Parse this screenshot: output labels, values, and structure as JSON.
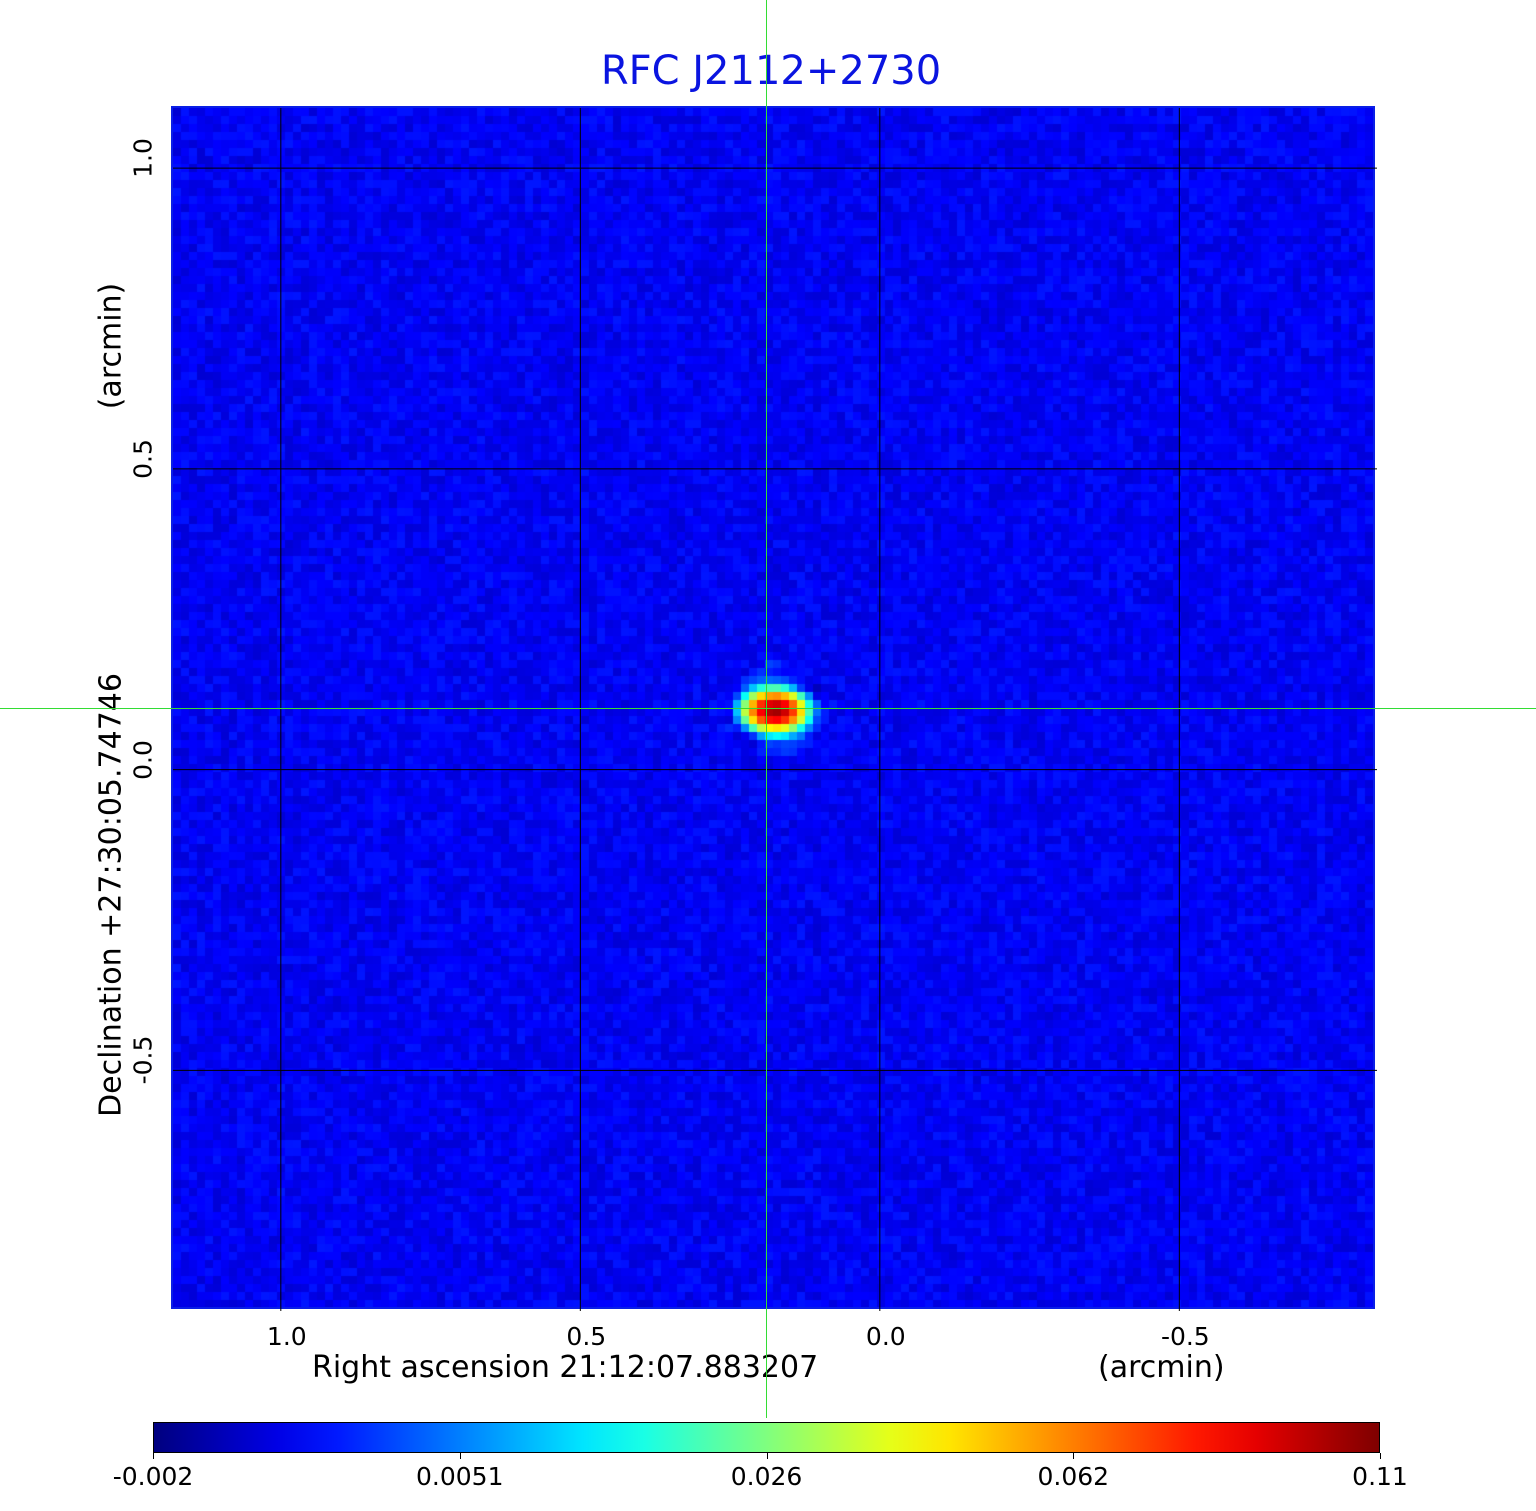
{
  "chart_data": {
    "type": "heatmap",
    "title": "RFC J2112+2730",
    "xlabel": "Right ascension  21:12:07.883207",
    "xunit": "(arcmin)",
    "ylabel": "Declination  +27:30:05.74746",
    "yunit": "(arcmin)",
    "xlim": [
      1.18,
      -0.83
    ],
    "ylim": [
      -0.9,
      1.1
    ],
    "xticks": [
      {
        "v": 1.0,
        "label": "1.0"
      },
      {
        "v": 0.5,
        "label": "0.5"
      },
      {
        "v": 0.0,
        "label": "0.0"
      },
      {
        "v": -0.5,
        "label": "-0.5"
      }
    ],
    "yticks": [
      {
        "v": 1.0,
        "label": "1.0"
      },
      {
        "v": 0.5,
        "label": "0.5"
      },
      {
        "v": 0.0,
        "label": "0.0"
      },
      {
        "v": -0.5,
        "label": "-0.5"
      }
    ],
    "grid": true,
    "grid_color": "#000000",
    "crosshair": {
      "x": 0.185,
      "y": 0.098,
      "color": "#33dd33"
    },
    "peak": {
      "x": 0.175,
      "y": 0.098,
      "value": 0.11
    },
    "background_level": 0.0,
    "colormap": "jet",
    "colorbar": {
      "placement": "bottom",
      "ticks": [
        "-0.002",
        "0.0051",
        "0.026",
        "0.062",
        "0.11"
      ],
      "range": [
        -0.002,
        0.11
      ]
    },
    "title_color": "#0a14e0"
  }
}
